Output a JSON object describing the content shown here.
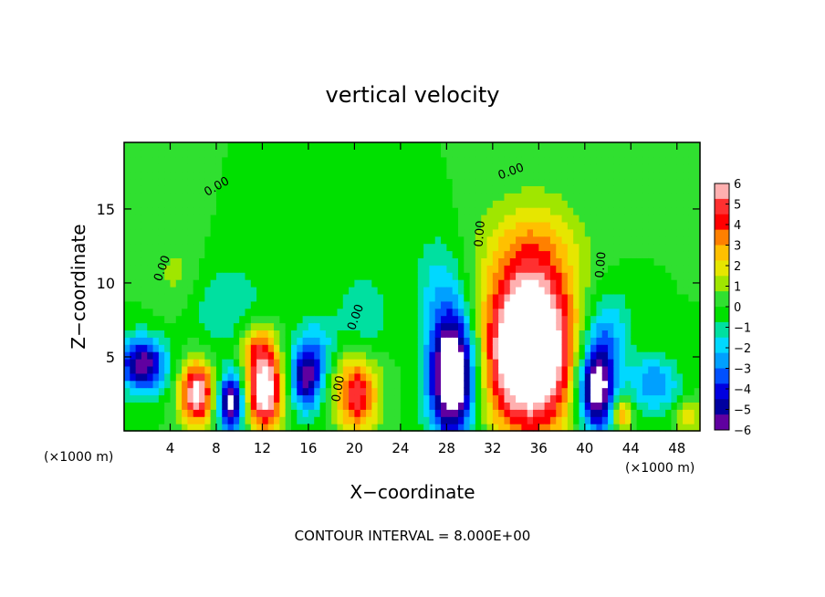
{
  "chart_data": {
    "type": "heatmap",
    "title": "vertical velocity",
    "xlabel": "X−coordinate",
    "ylabel": "Z−coordinate",
    "x_unit": "(×1000 m)",
    "x_unit_right": "(×1000 m)",
    "footer": "CONTOUR INTERVAL = 8.000E+00",
    "xlim": [
      0,
      50
    ],
    "ylim": [
      0,
      19.5
    ],
    "x_ticks": [
      4,
      8,
      12,
      16,
      20,
      24,
      28,
      32,
      36,
      40,
      44,
      48
    ],
    "x_tick_labels": [
      "4",
      "8",
      "12",
      "16",
      "20",
      "24",
      "28",
      "32",
      "36",
      "40",
      "44",
      "48"
    ],
    "y_ticks": [
      5,
      10,
      15
    ],
    "y_tick_labels": [
      "5",
      "10",
      "15"
    ],
    "colorbar": {
      "range": [
        -6,
        6
      ],
      "tick_labels": [
        "6",
        "5",
        "4",
        "3",
        "2",
        "1",
        "0",
        "−1",
        "−2",
        "−3",
        "−4",
        "−5",
        "−6"
      ],
      "colors": [
        "#ffb0b0",
        "#ff3030",
        "#ff0000",
        "#ff8000",
        "#ffc000",
        "#e6e600",
        "#a0e600",
        "#30e030",
        "#00e000",
        "#00e0a0",
        "#00d8ff",
        "#00a0ff",
        "#0050ff",
        "#0000e0",
        "#0000a0",
        "#6000a0"
      ],
      "saturation_color_high": "#ffffff",
      "saturation_color_low": "#ffffff"
    },
    "contour_label": "0.00",
    "blobs": [
      {
        "x": 1.6,
        "z": 4.5,
        "sx": 1.4,
        "sz": 1.3,
        "amp": -6.0
      },
      {
        "x": 6.3,
        "z": 2.6,
        "sx": 1.0,
        "sz": 1.5,
        "amp": 6.5
      },
      {
        "x": 9.3,
        "z": 1.9,
        "sx": 0.8,
        "sz": 1.4,
        "amp": -6.5
      },
      {
        "x": 12.2,
        "z": 2.8,
        "sx": 1.1,
        "sz": 2.0,
        "amp": 7.0
      },
      {
        "x": 11.5,
        "z": 5.8,
        "sx": 1.0,
        "sz": 1.2,
        "amp": 2.5
      },
      {
        "x": 15.8,
        "z": 3.7,
        "sx": 1.0,
        "sz": 1.6,
        "amp": -5.5
      },
      {
        "x": 20.2,
        "z": 2.5,
        "sx": 1.3,
        "sz": 1.8,
        "amp": 5.0
      },
      {
        "x": 20.8,
        "z": 8.0,
        "sx": 1.5,
        "sz": 2.0,
        "amp": -1.5
      },
      {
        "x": 28.5,
        "z": 3.8,
        "sx": 1.4,
        "sz": 3.0,
        "amp": -9.0
      },
      {
        "x": 27.2,
        "z": 10.0,
        "sx": 1.5,
        "sz": 2.5,
        "amp": -1.5
      },
      {
        "x": 35.2,
        "z": 5.5,
        "sx": 2.7,
        "sz": 3.8,
        "amp": 10.0
      },
      {
        "x": 35.5,
        "z": 12.5,
        "sx": 3.0,
        "sz": 2.5,
        "amp": 2.0
      },
      {
        "x": 41.0,
        "z": 3.0,
        "sx": 1.2,
        "sz": 2.2,
        "amp": -7.5
      },
      {
        "x": 42.0,
        "z": 7.0,
        "sx": 1.5,
        "sz": 2.0,
        "amp": -2.0
      },
      {
        "x": 43.2,
        "z": 1.3,
        "sx": 0.6,
        "sz": 0.8,
        "amp": 4.0
      },
      {
        "x": 46.0,
        "z": 3.2,
        "sx": 1.5,
        "sz": 1.3,
        "amp": -3.0
      },
      {
        "x": 49.0,
        "z": 1.0,
        "sx": 0.8,
        "sz": 0.8,
        "amp": 2.0
      },
      {
        "x": 9.0,
        "z": 8.5,
        "sx": 2.5,
        "sz": 2.0,
        "amp": -1.5
      },
      {
        "x": 4.5,
        "z": 10.5,
        "sx": 1.5,
        "sz": 2.0,
        "amp": 1.0
      },
      {
        "x": 17.0,
        "z": 6.0,
        "sx": 1.2,
        "sz": 1.5,
        "amp": -1.5
      }
    ]
  }
}
